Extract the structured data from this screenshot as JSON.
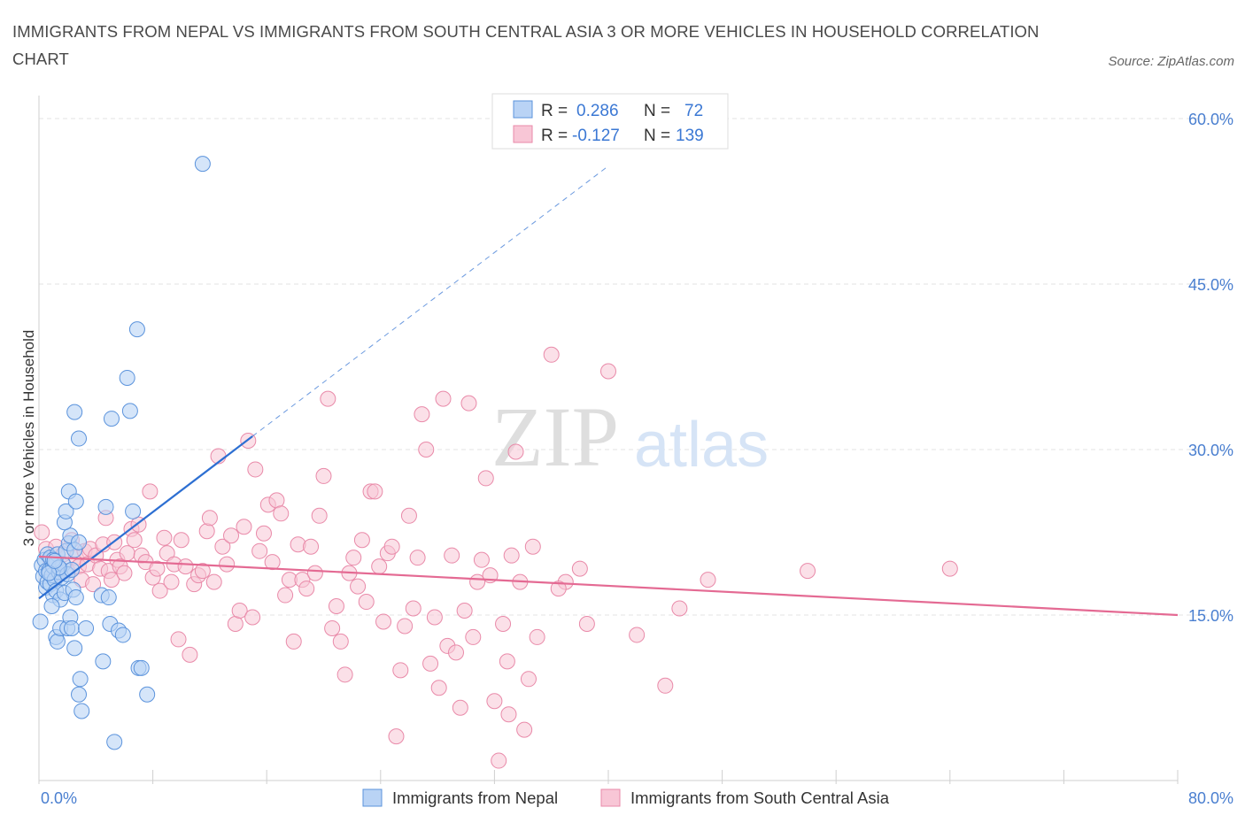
{
  "title": "IMMIGRANTS FROM NEPAL VS IMMIGRANTS FROM SOUTH CENTRAL ASIA 3 OR MORE VEHICLES IN HOUSEHOLD CORRELATION CHART",
  "source": "Source: ZipAtlas.com",
  "watermark": {
    "zip": "ZIP",
    "atlas": "atlas"
  },
  "colors": {
    "nepal_fill": "#b9d3f5",
    "nepal_stroke": "#5b93dc",
    "nepal_line": "#2d6fd2",
    "sca_fill": "#f8c6d6",
    "sca_stroke": "#e98aa9",
    "sca_line": "#e46a93",
    "axis_label": "#4a7fd0",
    "grid": "#e3e3e3"
  },
  "stats": [
    {
      "r_label": "R =",
      "r_value": "0.286",
      "n_label": "N =",
      "n_value": "72"
    },
    {
      "r_label": "R =",
      "r_value": "-0.127",
      "n_label": "N =",
      "n_value": "139"
    }
  ],
  "chart_data": {
    "type": "scatter",
    "title": "IMMIGRANTS FROM NEPAL VS IMMIGRANTS FROM SOUTH CENTRAL ASIA 3 OR MORE VEHICLES IN HOUSEHOLD CORRELATION CHART",
    "xlabel": "",
    "ylabel": "3 or more Vehicles in Household",
    "xlim": [
      0,
      80
    ],
    "ylim": [
      0,
      60
    ],
    "x_tick_labels": [
      "0.0%",
      "80.0%"
    ],
    "y_ticks": [
      15,
      30,
      45,
      60
    ],
    "y_tick_labels": [
      "15.0%",
      "30.0%",
      "45.0%",
      "60.0%"
    ],
    "grid": true,
    "legend_position": "bottom",
    "series": [
      {
        "name": "Immigrants from Nepal",
        "r": 0.286,
        "n": 72,
        "trend": {
          "x0": 0.0,
          "y0": 16.5,
          "x1": 15.0,
          "y1": 31.2,
          "x_dashed_end": 40.0,
          "y_dashed_end": 55.7
        },
        "points": [
          [
            0.2,
            19.5
          ],
          [
            0.3,
            18.5
          ],
          [
            0.4,
            20.0
          ],
          [
            0.5,
            17.5
          ],
          [
            0.5,
            19.0
          ],
          [
            0.6,
            18.0
          ],
          [
            0.6,
            20.5
          ],
          [
            0.7,
            19.0
          ],
          [
            0.8,
            17.8
          ],
          [
            0.8,
            20.2
          ],
          [
            0.9,
            18.6
          ],
          [
            1.0,
            19.4
          ],
          [
            1.0,
            16.8
          ],
          [
            1.1,
            18.2
          ],
          [
            1.2,
            19.8
          ],
          [
            1.2,
            17.2
          ],
          [
            1.3,
            20.5
          ],
          [
            1.4,
            18.9
          ],
          [
            1.5,
            19.2
          ],
          [
            1.5,
            16.4
          ],
          [
            1.6,
            18.4
          ],
          [
            1.7,
            19.6
          ],
          [
            1.8,
            17.0
          ],
          [
            1.9,
            20.8
          ],
          [
            2.0,
            18.7
          ],
          [
            2.1,
            21.5
          ],
          [
            2.2,
            22.2
          ],
          [
            2.3,
            19.1
          ],
          [
            2.4,
            17.3
          ],
          [
            2.5,
            20.9
          ],
          [
            0.1,
            14.4
          ],
          [
            0.9,
            15.8
          ],
          [
            1.2,
            13.0
          ],
          [
            1.3,
            12.6
          ],
          [
            1.5,
            13.8
          ],
          [
            2.0,
            13.8
          ],
          [
            2.2,
            14.8
          ],
          [
            2.3,
            13.8
          ],
          [
            2.5,
            12.0
          ],
          [
            2.6,
            16.6
          ],
          [
            1.8,
            23.4
          ],
          [
            1.9,
            24.4
          ],
          [
            2.1,
            26.2
          ],
          [
            2.6,
            25.3
          ],
          [
            2.8,
            21.6
          ],
          [
            3.3,
            13.8
          ],
          [
            4.4,
            16.8
          ],
          [
            4.5,
            10.8
          ],
          [
            4.7,
            24.8
          ],
          [
            4.9,
            16.6
          ],
          [
            5.0,
            14.2
          ],
          [
            5.6,
            13.6
          ],
          [
            5.9,
            13.2
          ],
          [
            6.2,
            36.5
          ],
          [
            6.4,
            33.5
          ],
          [
            6.6,
            24.4
          ],
          [
            7.0,
            10.2
          ],
          [
            7.2,
            10.2
          ],
          [
            7.6,
            7.8
          ],
          [
            5.1,
            32.8
          ],
          [
            2.5,
            33.4
          ],
          [
            2.8,
            31.0
          ],
          [
            6.9,
            40.9
          ],
          [
            11.5,
            55.9
          ],
          [
            5.3,
            3.5
          ],
          [
            3.0,
            6.3
          ],
          [
            2.8,
            7.8
          ],
          [
            2.9,
            9.2
          ],
          [
            1.0,
            20.0
          ],
          [
            1.4,
            19.3
          ],
          [
            0.7,
            18.8
          ],
          [
            1.1,
            19.9
          ]
        ]
      },
      {
        "name": "Immigrants from South Central Asia",
        "r": -0.127,
        "n": 139,
        "trend": {
          "x0": 0.0,
          "y0": 20.3,
          "x1": 80.0,
          "y1": 15.0
        },
        "points": [
          [
            0.2,
            22.5
          ],
          [
            0.5,
            21.0
          ],
          [
            0.8,
            20.0
          ],
          [
            1.0,
            19.5
          ],
          [
            1.2,
            21.2
          ],
          [
            1.5,
            18.8
          ],
          [
            1.7,
            20.5
          ],
          [
            2.0,
            19.0
          ],
          [
            2.3,
            21.8
          ],
          [
            2.6,
            20.2
          ],
          [
            2.8,
            19.4
          ],
          [
            3.0,
            18.2
          ],
          [
            3.2,
            20.8
          ],
          [
            3.4,
            19.6
          ],
          [
            3.6,
            21.0
          ],
          [
            3.8,
            17.8
          ],
          [
            4.0,
            20.4
          ],
          [
            4.3,
            19.2
          ],
          [
            4.5,
            21.4
          ],
          [
            4.7,
            23.8
          ],
          [
            4.9,
            19.0
          ],
          [
            5.1,
            18.2
          ],
          [
            5.3,
            21.6
          ],
          [
            5.5,
            20.0
          ],
          [
            5.7,
            19.4
          ],
          [
            6.0,
            18.8
          ],
          [
            6.2,
            20.6
          ],
          [
            6.5,
            22.8
          ],
          [
            6.7,
            21.8
          ],
          [
            7.0,
            23.2
          ],
          [
            7.2,
            20.4
          ],
          [
            7.5,
            19.8
          ],
          [
            7.8,
            26.2
          ],
          [
            8.0,
            18.4
          ],
          [
            8.3,
            19.2
          ],
          [
            8.5,
            17.2
          ],
          [
            8.8,
            22.0
          ],
          [
            9.0,
            20.6
          ],
          [
            9.3,
            18.0
          ],
          [
            9.5,
            19.6
          ],
          [
            9.8,
            12.8
          ],
          [
            10.0,
            21.8
          ],
          [
            10.3,
            19.4
          ],
          [
            10.6,
            11.4
          ],
          [
            10.9,
            17.8
          ],
          [
            11.2,
            18.6
          ],
          [
            11.5,
            19.0
          ],
          [
            11.8,
            22.6
          ],
          [
            12.0,
            23.8
          ],
          [
            12.3,
            18.0
          ],
          [
            12.6,
            29.4
          ],
          [
            12.9,
            21.2
          ],
          [
            13.2,
            19.6
          ],
          [
            13.5,
            22.2
          ],
          [
            13.8,
            14.2
          ],
          [
            14.1,
            15.4
          ],
          [
            14.4,
            23.0
          ],
          [
            14.7,
            30.8
          ],
          [
            15.0,
            14.8
          ],
          [
            15.2,
            28.2
          ],
          [
            15.5,
            20.8
          ],
          [
            15.8,
            22.4
          ],
          [
            16.1,
            25.0
          ],
          [
            16.4,
            19.8
          ],
          [
            16.7,
            25.4
          ],
          [
            17.0,
            24.2
          ],
          [
            17.3,
            16.8
          ],
          [
            17.6,
            18.2
          ],
          [
            17.9,
            12.6
          ],
          [
            18.2,
            21.4
          ],
          [
            18.5,
            18.2
          ],
          [
            18.8,
            17.4
          ],
          [
            19.1,
            21.2
          ],
          [
            19.4,
            18.8
          ],
          [
            19.7,
            24.0
          ],
          [
            20.0,
            27.6
          ],
          [
            20.3,
            34.6
          ],
          [
            20.6,
            13.8
          ],
          [
            20.9,
            15.8
          ],
          [
            21.2,
            12.6
          ],
          [
            21.5,
            9.6
          ],
          [
            21.8,
            18.8
          ],
          [
            22.1,
            20.2
          ],
          [
            22.4,
            17.6
          ],
          [
            22.7,
            21.8
          ],
          [
            23.0,
            16.2
          ],
          [
            23.3,
            26.2
          ],
          [
            23.6,
            26.2
          ],
          [
            23.9,
            19.4
          ],
          [
            24.2,
            14.4
          ],
          [
            24.5,
            20.6
          ],
          [
            24.8,
            21.2
          ],
          [
            25.1,
            4.0
          ],
          [
            25.4,
            10.0
          ],
          [
            25.7,
            14.0
          ],
          [
            26.0,
            24.0
          ],
          [
            26.3,
            15.6
          ],
          [
            26.6,
            20.2
          ],
          [
            26.9,
            33.2
          ],
          [
            27.2,
            30.0
          ],
          [
            27.5,
            10.6
          ],
          [
            27.8,
            14.8
          ],
          [
            28.1,
            8.4
          ],
          [
            28.4,
            34.6
          ],
          [
            28.7,
            12.2
          ],
          [
            29.0,
            20.4
          ],
          [
            29.3,
            11.6
          ],
          [
            29.6,
            6.6
          ],
          [
            29.9,
            15.4
          ],
          [
            30.2,
            34.2
          ],
          [
            30.5,
            13.0
          ],
          [
            30.8,
            18.0
          ],
          [
            31.1,
            20.0
          ],
          [
            31.4,
            27.4
          ],
          [
            31.7,
            18.6
          ],
          [
            32.0,
            7.2
          ],
          [
            32.3,
            1.8
          ],
          [
            32.6,
            14.2
          ],
          [
            32.9,
            10.8
          ],
          [
            33.2,
            20.4
          ],
          [
            33.5,
            29.8
          ],
          [
            33.8,
            18.0
          ],
          [
            34.1,
            4.6
          ],
          [
            34.4,
            9.2
          ],
          [
            34.7,
            21.2
          ],
          [
            35.0,
            13.0
          ],
          [
            36.0,
            38.6
          ],
          [
            37.0,
            18.0
          ],
          [
            38.0,
            19.2
          ],
          [
            40.0,
            37.1
          ],
          [
            47.0,
            18.2
          ],
          [
            54.0,
            19.0
          ],
          [
            42.0,
            13.2
          ],
          [
            44.0,
            8.6
          ],
          [
            45.0,
            15.6
          ],
          [
            33.0,
            6.0
          ],
          [
            36.5,
            17.4
          ],
          [
            38.5,
            14.2
          ],
          [
            64.0,
            19.2
          ]
        ]
      }
    ]
  },
  "legend": {
    "nepal_label": "Immigrants from Nepal",
    "sca_label": "Immigrants from South Central Asia"
  }
}
